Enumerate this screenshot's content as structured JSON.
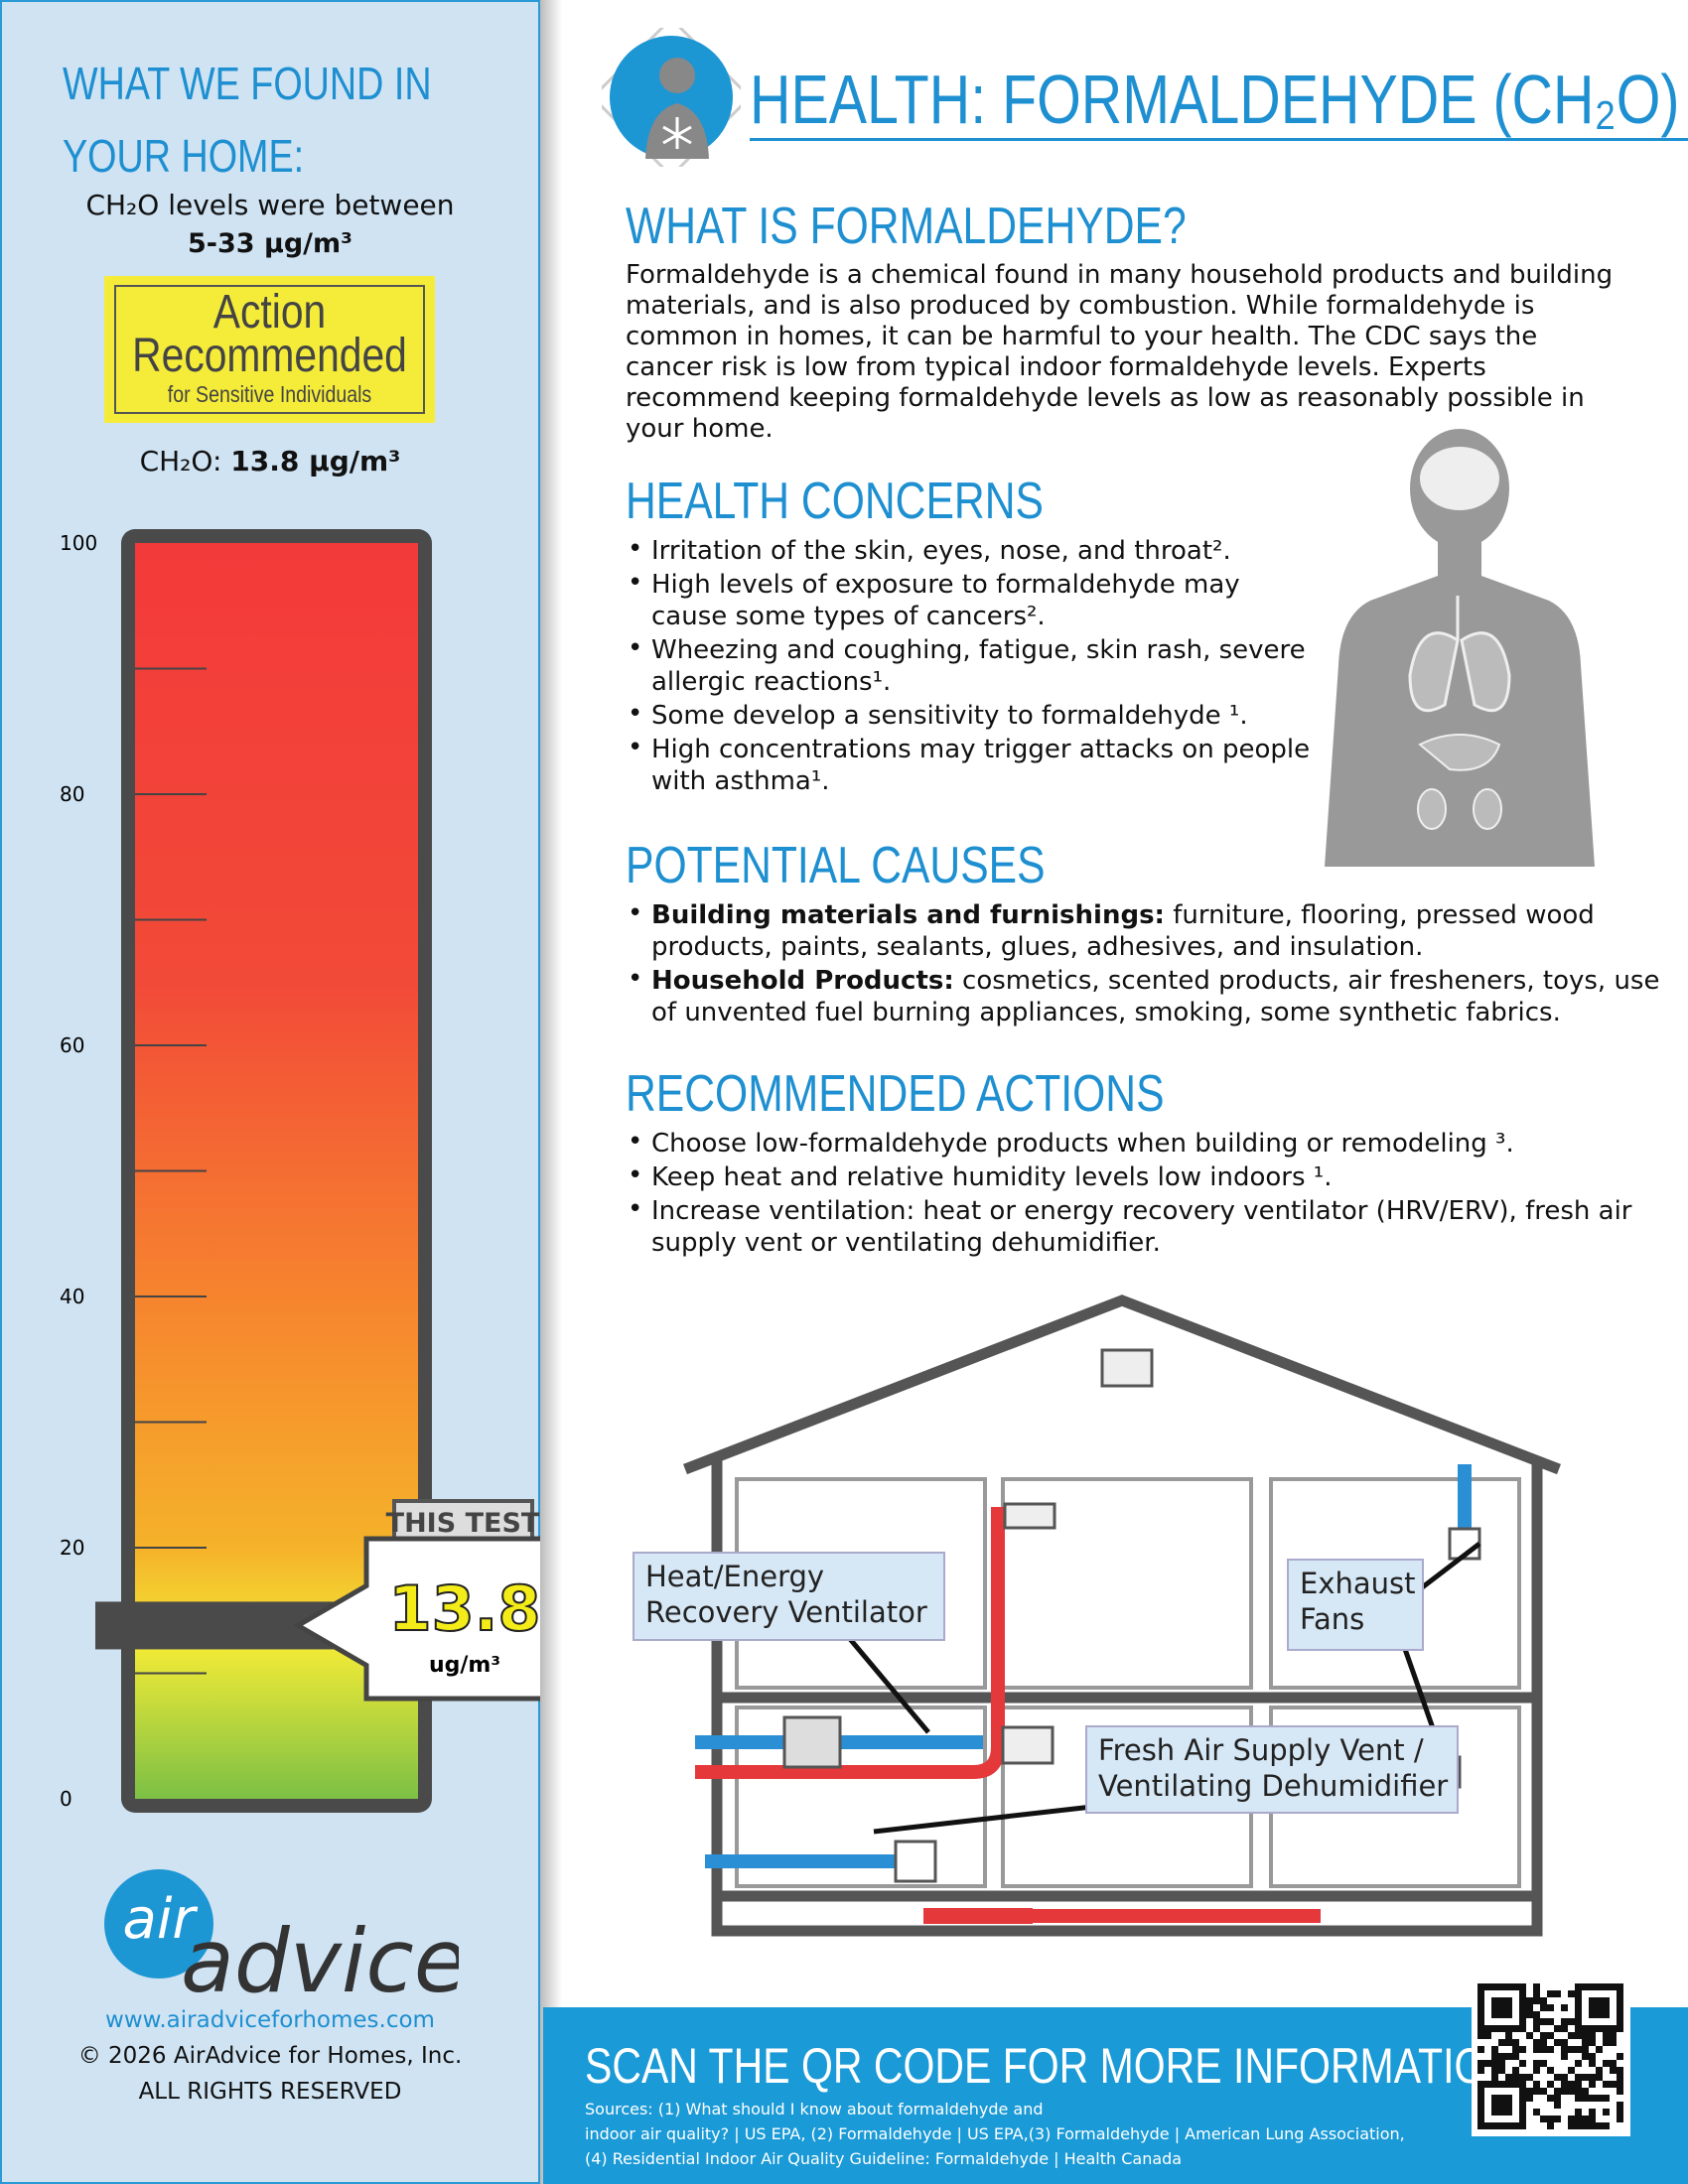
{
  "sidebar": {
    "heading_lines": [
      "WHAT WE FOUND IN",
      "YOUR HOME:"
    ],
    "range_intro": "CH₂O levels were between",
    "range": "5-33 μg/m³",
    "status": {
      "line1": "Action",
      "line2": "Recommended",
      "line3": "for Sensitive Individuals"
    },
    "reading_label": "CH₂O:",
    "reading_value": "13.8 μg/m³"
  },
  "gauge": {
    "ylim": [
      0,
      100
    ],
    "yticks": [
      0,
      20,
      40,
      60,
      80,
      100
    ],
    "minor_ticks": [
      10,
      20,
      30,
      40,
      50,
      60,
      70,
      80,
      90
    ],
    "value": 13.8,
    "tag": "THIS TEST",
    "unit": "ug/m³"
  },
  "brand": {
    "logo_top": "air",
    "logo_bottom": "advice",
    "url": "www.airadviceforhomes.com",
    "copyright": "© 2026 AirAdvice for Homes, Inc.",
    "rights": "ALL RIGHTS RESERVED"
  },
  "header": {
    "title": "HEALTH: FORMALDEHYDE (CH₂O)"
  },
  "sections": [
    {
      "heading": "WHAT IS FORMALDEHYDE?",
      "paragraph": "Formaldehyde is a chemical found in many household products and building materials, and is also produced by combustion. While formaldehyde is common in homes, it can be harmful to your health. The CDC says the cancer risk is low from typical indoor formaldehyde levels. Experts recommend keeping formaldehyde levels as low as reasonably possible in your home."
    },
    {
      "heading": "HEALTH CONCERNS",
      "items": [
        {
          "text": "Irritation of the skin, eyes, nose, and throat²."
        },
        {
          "text": "High levels of exposure to formaldehyde may cause some types of cancers²."
        },
        {
          "text": "Wheezing and coughing, fatigue, skin rash, severe allergic reactions¹."
        },
        {
          "text": "Some develop a sensitivity to formaldehyde ¹."
        },
        {
          "text": "High concentrations may trigger attacks on people with asthma¹."
        }
      ]
    },
    {
      "heading": "POTENTIAL CAUSES",
      "items": [
        {
          "label": "Building materials and furnishings:",
          "text": "furniture, flooring, pressed wood products, paints, sealants, glues, adhesives, and insulation."
        },
        {
          "label": "Household Products:",
          "text": "cosmetics, scented products, air fresheners, toys, use of unvented fuel burning appliances, smoking, some synthetic fabrics."
        }
      ]
    },
    {
      "heading": "RECOMMENDED ACTIONS",
      "items": [
        {
          "text": "Choose low-formaldehyde products when building or remodeling ³."
        },
        {
          "text": "Keep heat and relative humidity levels low indoors ¹."
        },
        {
          "text": "Increase ventilation: heat or energy recovery ventilator (HRV/ERV), fresh air supply vent or ventilating dehumidifier."
        }
      ]
    }
  ],
  "diagram": {
    "labels": [
      [
        "Heat/Energy",
        "Recovery Ventilator"
      ],
      [
        "Exhaust",
        "Fans"
      ],
      [
        "Fresh Air Supply Vent /",
        "Ventilating Dehumidifier"
      ]
    ]
  },
  "footer": {
    "cta": "SCAN THE QR CODE FOR MORE INFORMATION:",
    "sources": [
      "Sources: (1) What should I know about formaldehyde and",
      "indoor air quality? | US EPA, (2) Formaldehyde | US EPA,(3) Formaldehyde | American Lung Association,",
      "(4) Residential Indoor Air Quality Guideline: Formaldehyde | Health Canada"
    ]
  }
}
